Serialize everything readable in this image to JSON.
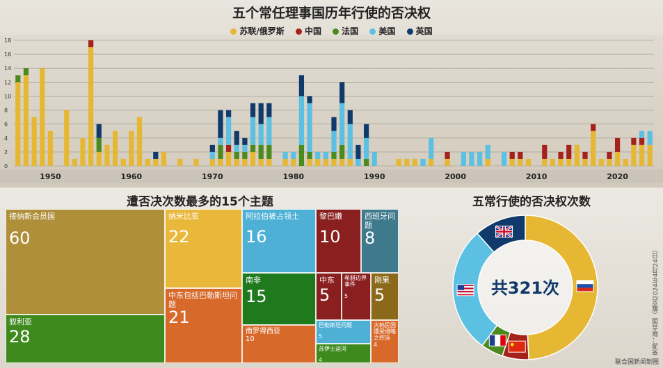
{
  "header": {
    "title": "五个常任理事国历年行使的否决权",
    "treemap_title": "遭否决次数最多的15个主题",
    "donut_title": "五常行使的否决权次数",
    "source": "来源：联合国（截至2024年4月24日）",
    "credit": "联合国新闻制图"
  },
  "colors": {
    "russia": "#e6b733",
    "china": "#a4221b",
    "france": "#4b8a1d",
    "usa": "#5bc0e2",
    "uk": "#0f3a6b"
  },
  "chart_data": [
    {
      "type": "bar",
      "stacked": true,
      "title": "五个常任理事国历年行使的否决权",
      "legend": [
        "苏联/俄罗斯",
        "中国",
        "法国",
        "美国",
        "英国"
      ],
      "legend_position": "top",
      "ylim": [
        0,
        18
      ],
      "yticks": [
        0,
        2,
        4,
        6,
        8,
        10,
        12,
        14,
        16,
        18
      ],
      "xticks": [
        1950,
        1960,
        1970,
        1980,
        1990,
        2000,
        2010,
        2020
      ],
      "grid": true,
      "x": [
        1946,
        1947,
        1948,
        1949,
        1950,
        1951,
        1952,
        1953,
        1954,
        1955,
        1956,
        1957,
        1958,
        1959,
        1960,
        1961,
        1962,
        1963,
        1964,
        1965,
        1966,
        1967,
        1968,
        1969,
        1970,
        1971,
        1972,
        1973,
        1974,
        1975,
        1976,
        1977,
        1978,
        1979,
        1980,
        1981,
        1982,
        1983,
        1984,
        1985,
        1986,
        1987,
        1988,
        1989,
        1990,
        1991,
        1992,
        1993,
        1994,
        1995,
        1996,
        1997,
        1998,
        1999,
        2000,
        2001,
        2002,
        2003,
        2004,
        2005,
        2006,
        2007,
        2008,
        2009,
        2010,
        2011,
        2012,
        2013,
        2014,
        2015,
        2016,
        2017,
        2018,
        2019,
        2020,
        2021,
        2022,
        2023,
        2024
      ],
      "series": [
        {
          "name": "苏联/俄罗斯",
          "values": [
            12,
            13,
            7,
            14,
            5,
            0,
            8,
            1,
            4,
            17,
            2,
            3,
            5,
            1,
            5,
            7,
            1,
            1,
            2,
            0,
            1,
            0,
            1,
            0,
            1,
            1,
            2,
            1,
            1,
            2,
            1,
            1,
            0,
            1,
            1,
            0,
            1,
            1,
            1,
            1,
            1,
            1,
            0,
            0,
            0,
            0,
            0,
            1,
            1,
            1,
            0,
            1,
            0,
            1,
            0,
            0,
            0,
            0,
            1,
            0,
            0,
            1,
            1,
            1,
            0,
            1,
            1,
            1,
            1,
            3,
            1,
            5,
            1,
            1,
            2,
            1,
            3,
            3,
            3
          ]
        },
        {
          "name": "中国",
          "values": [
            0,
            0,
            0,
            0,
            0,
            0,
            0,
            0,
            0,
            1,
            0,
            0,
            0,
            0,
            0,
            0,
            0,
            0,
            0,
            0,
            0,
            0,
            0,
            0,
            0,
            0,
            1,
            0,
            0,
            0,
            0,
            0,
            0,
            0,
            0,
            0,
            0,
            0,
            0,
            0,
            0,
            0,
            0,
            0,
            0,
            0,
            0,
            0,
            0,
            0,
            0,
            0,
            0,
            1,
            0,
            0,
            0,
            0,
            0,
            0,
            0,
            1,
            1,
            0,
            0,
            2,
            0,
            1,
            2,
            0,
            1,
            1,
            0,
            1,
            2,
            0,
            1,
            1,
            0
          ]
        },
        {
          "name": "法国",
          "values": [
            1,
            1,
            0,
            0,
            0,
            0,
            0,
            0,
            0,
            0,
            2,
            0,
            0,
            0,
            0,
            0,
            0,
            0,
            0,
            0,
            0,
            0,
            0,
            0,
            0,
            2,
            0,
            1,
            1,
            1,
            2,
            2,
            0,
            0,
            0,
            3,
            1,
            0,
            0,
            1,
            2,
            0,
            0,
            1,
            0,
            0,
            0,
            0,
            0,
            0,
            0,
            0,
            0,
            0,
            0,
            0,
            0,
            0,
            0,
            0,
            0,
            0,
            0,
            0,
            0,
            0,
            0,
            0,
            0,
            0,
            0,
            0,
            0,
            0,
            0,
            0,
            0,
            0,
            0
          ]
        },
        {
          "name": "美国",
          "values": [
            0,
            0,
            0,
            0,
            0,
            0,
            0,
            0,
            0,
            0,
            0,
            0,
            0,
            0,
            0,
            0,
            0,
            0,
            0,
            0,
            0,
            0,
            0,
            0,
            1,
            1,
            4,
            1,
            1,
            4,
            3,
            4,
            0,
            1,
            1,
            7,
            7,
            1,
            1,
            3,
            6,
            5,
            1,
            3,
            2,
            0,
            0,
            0,
            0,
            0,
            1,
            3,
            0,
            0,
            0,
            2,
            2,
            2,
            2,
            0,
            2,
            0,
            0,
            0,
            0,
            0,
            0,
            0,
            0,
            0,
            0,
            0,
            0,
            0,
            0,
            0,
            0,
            1,
            2
          ]
        },
        {
          "name": "英国",
          "values": [
            0,
            0,
            0,
            0,
            0,
            0,
            0,
            0,
            0,
            0,
            2,
            0,
            0,
            0,
            0,
            0,
            0,
            1,
            0,
            0,
            0,
            0,
            0,
            0,
            1,
            4,
            1,
            2,
            1,
            2,
            3,
            2,
            0,
            0,
            0,
            3,
            1,
            0,
            0,
            2,
            3,
            2,
            2,
            2,
            0,
            0,
            0,
            0,
            0,
            0,
            0,
            0,
            0,
            0,
            0,
            0,
            0,
            0,
            0,
            0,
            0,
            0,
            0,
            0,
            0,
            0,
            0,
            0,
            0,
            0,
            0,
            0,
            0,
            0,
            0,
            0,
            0,
            0,
            0
          ]
        }
      ]
    },
    {
      "type": "treemap",
      "title": "遭否决次数最多的15个主题",
      "items": [
        {
          "label": "接纳新会员国",
          "value": 60,
          "color": "#b08f3b"
        },
        {
          "label": "叙利亚",
          "value": 28,
          "color": "#3f8a1d"
        },
        {
          "label": "纳米比亚",
          "value": 22,
          "color": "#e9b73a"
        },
        {
          "label": "中东包括巴勒斯坦问题",
          "value": 21,
          "color": "#d7692a"
        },
        {
          "label": "阿拉伯被占领土",
          "value": 16,
          "color": "#4fb0d6"
        },
        {
          "label": "南非",
          "value": 15,
          "color": "#1f7a1d"
        },
        {
          "label": "南罗得西亚",
          "value": 10,
          "color": "#d7692a"
        },
        {
          "label": "黎巴嫩",
          "value": 10,
          "color": "#8a1f1f"
        },
        {
          "label": "西班牙问题",
          "value": 8,
          "color": "#3f7a8c"
        },
        {
          "label": "中东",
          "value": 5,
          "color": "#8a1f1f"
        },
        {
          "label": "希腊边界事件",
          "value": 5,
          "color": "#8a1f1f"
        },
        {
          "label": "刚果",
          "value": 5,
          "color": "#8a6a1a"
        },
        {
          "label": "巴勒斯坦问题",
          "value": 5,
          "color": "#4fb0d6"
        },
        {
          "label": "苏伊士运河",
          "value": 4,
          "color": "#3f8a1d"
        },
        {
          "label": "大韩民国遭受侵略之控诉",
          "value": 4,
          "color": "#d7692a"
        }
      ]
    },
    {
      "type": "pie",
      "donut": true,
      "title": "五常行使的否决权次数",
      "center_label": "共321次",
      "slices": [
        {
          "key": "russia",
          "value": 158,
          "color": "#e6b733",
          "flag": "russia-flag"
        },
        {
          "key": "china",
          "value": 19,
          "color": "#a4221b",
          "flag": "china-flag"
        },
        {
          "key": "france",
          "value": 16,
          "color": "#4b8a1d",
          "flag": "france-flag"
        },
        {
          "key": "usa",
          "value": 91,
          "color": "#5bc0e2",
          "flag": "usa-flag"
        },
        {
          "key": "uk",
          "value": 37,
          "color": "#0f3a6b",
          "flag": "uk-flag"
        }
      ]
    }
  ]
}
